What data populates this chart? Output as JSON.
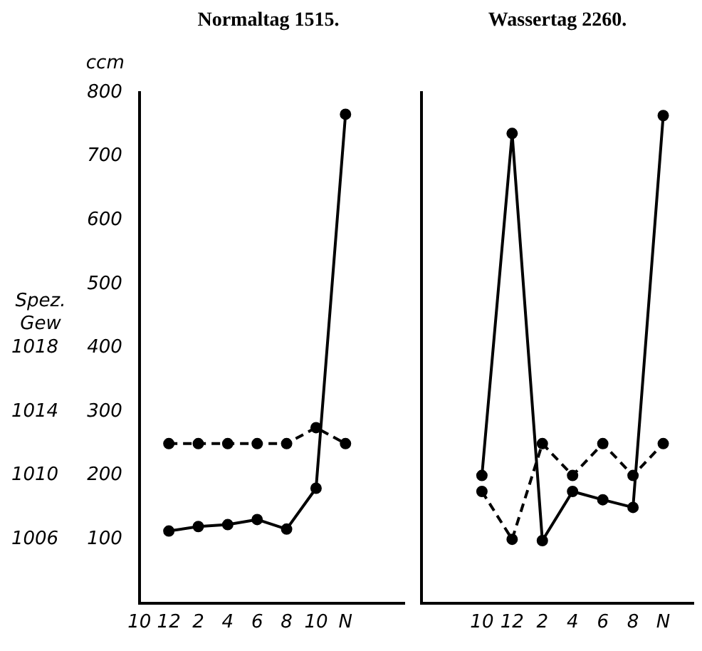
{
  "chart_data": [
    {
      "type": "line",
      "title": "Normaltag 1515.",
      "ylabel": "ccm",
      "y2label": "Spez. Gew",
      "categories": [
        "10",
        "12",
        "2",
        "4",
        "6",
        "8",
        "10",
        "N",
        null,
        null
      ],
      "series": [
        {
          "color": "#000000",
          "line_style": "solid",
          "values": [
            null,
            113,
            120,
            123,
            131,
            116,
            180,
            766,
            null,
            null
          ]
        },
        {
          "color": "#000000",
          "line_style": "dashed",
          "axis": "y2",
          "values": [
            null,
            1012,
            1012,
            1012,
            1012,
            1012,
            1013,
            1012,
            null,
            null
          ]
        }
      ],
      "ylim": [
        0,
        800
      ],
      "yticks": [
        100,
        200,
        300,
        400,
        500,
        600,
        700,
        800
      ],
      "y2lim": [
        1002,
        1034
      ],
      "y2ticks": [
        1006,
        1010,
        1014,
        1018
      ],
      "grid": false,
      "legend": false,
      "marker": "circle"
    },
    {
      "type": "line",
      "title": "Wassertag 2260.",
      "categories": [
        null,
        null,
        "10",
        "12",
        "2",
        "4",
        "6",
        "8",
        "N",
        null
      ],
      "series": [
        {
          "color": "#000000",
          "line_style": "solid",
          "values": [
            null,
            null,
            200,
            736,
            98,
            175,
            162,
            150,
            764,
            null
          ]
        },
        {
          "color": "#000000",
          "line_style": "dashed",
          "axis": "y2",
          "values": [
            null,
            null,
            1009,
            1006,
            1012,
            1010,
            1012,
            1010,
            1012,
            null
          ]
        }
      ],
      "ylim": [
        0,
        800
      ],
      "yticks": [
        100,
        200,
        300,
        400,
        500,
        600,
        700,
        800
      ],
      "y2lim": [
        1002,
        1034
      ],
      "y2ticks": [
        1006,
        1010,
        1014,
        1018
      ],
      "grid": false,
      "legend": false,
      "marker": "circle",
      "tick_labels": "x"
    }
  ]
}
